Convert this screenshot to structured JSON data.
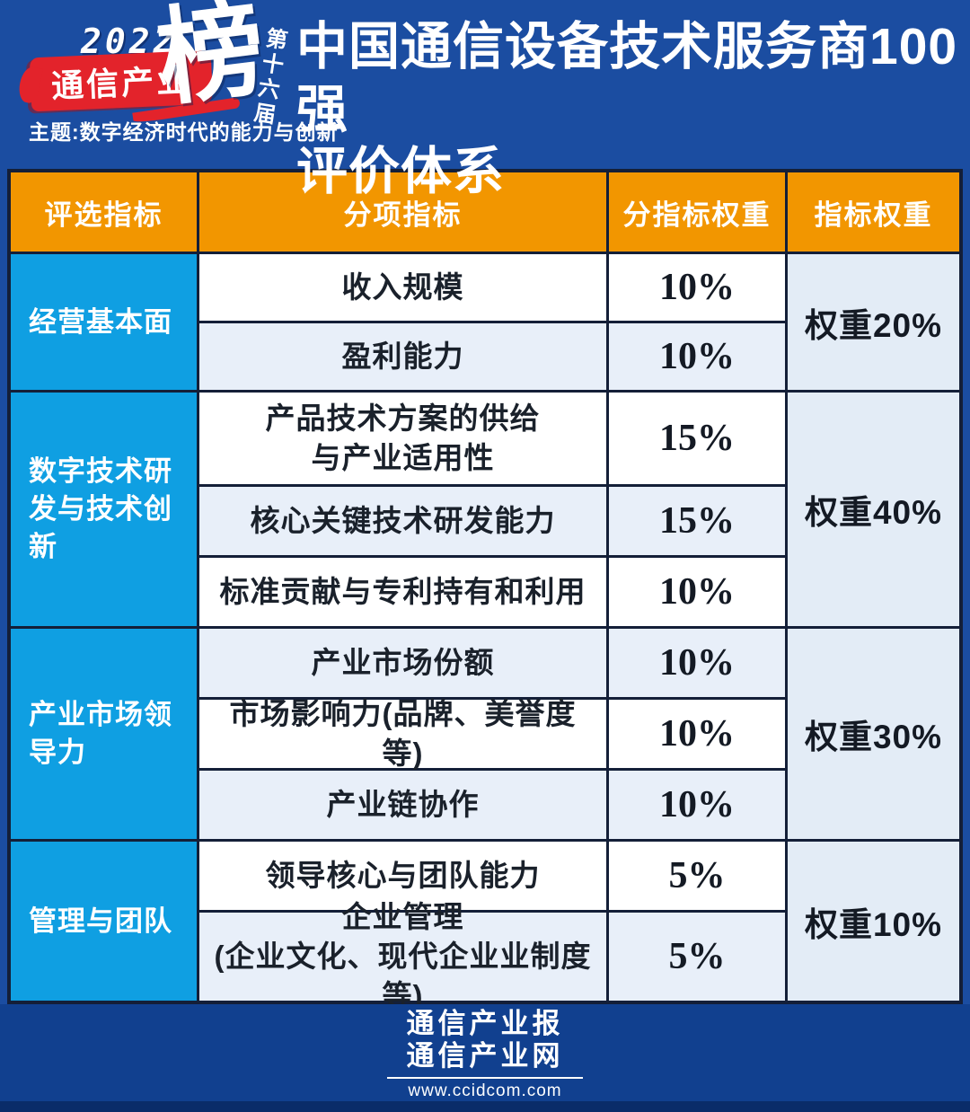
{
  "logo": {
    "year": "2022",
    "banner": "通信产业",
    "rank_char": "榜",
    "edition": "第十六届",
    "theme": "主题:数字经济时代的能力与创新",
    "red": "#e3232b"
  },
  "title": {
    "line1": "中国通信设备技术服务商100强",
    "line2": "评价体系"
  },
  "table": {
    "headers": [
      "评选指标",
      "分项指标",
      "分指标权重",
      "指标权重"
    ],
    "groups": [
      {
        "category": "经营基本面",
        "weight_label": "权重20%",
        "rows": [
          {
            "name": "收入规模",
            "weight": "10%"
          },
          {
            "name": "盈利能力",
            "weight": "10%"
          }
        ]
      },
      {
        "category": "数字技术研\n发与技术创\n新",
        "weight_label": "权重40%",
        "rows": [
          {
            "name": "产品技术方案的供给\n与产业适用性",
            "weight": "15%"
          },
          {
            "name": "核心关键技术研发能力",
            "weight": "15%"
          },
          {
            "name": "标准贡献与专利持有和利用",
            "weight": "10%"
          }
        ]
      },
      {
        "category": "产业市场领\n导力",
        "weight_label": "权重30%",
        "rows": [
          {
            "name": "产业市场份额",
            "weight": "10%"
          },
          {
            "name": "市场影响力(品牌、美誉度等)",
            "weight": "10%"
          },
          {
            "name": "产业链协作",
            "weight": "10%"
          }
        ]
      },
      {
        "category": "管理与团队",
        "weight_label": "权重10%",
        "rows": [
          {
            "name": "领导核心与团队能力",
            "weight": "5%"
          },
          {
            "name": "企业管理\n(企业文化、现代企业业制度等)",
            "weight": "5%"
          }
        ]
      }
    ],
    "colors": {
      "header_bg": "#f29600",
      "category_bg": "#0f9fe2",
      "row_alt_bg": "#e8eff9",
      "weight_col_bg": "#e3ecf6",
      "grid_line": "#141f38"
    }
  },
  "footer": {
    "logo_line1": "通信产业报",
    "logo_line2": "通信产业网",
    "url": "www.ccidcom.com"
  }
}
